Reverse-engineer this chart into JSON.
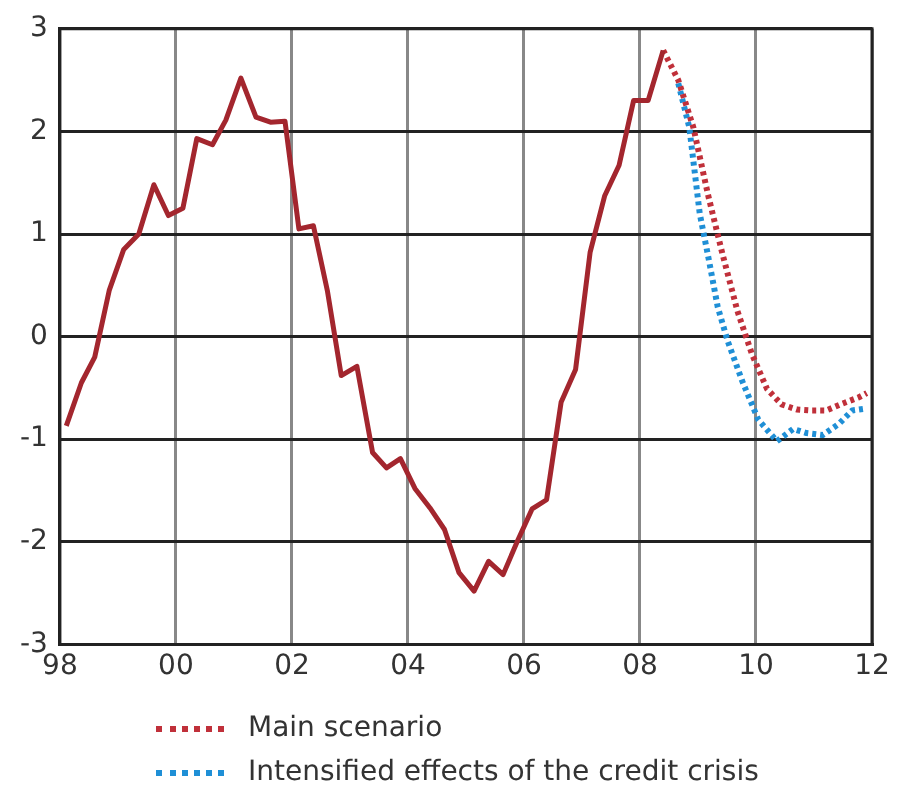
{
  "chart_data": {
    "type": "line",
    "xlim": [
      1998,
      2012
    ],
    "ylim": [
      -3,
      3
    ],
    "xticks": [
      {
        "value": 1998,
        "label": "98"
      },
      {
        "value": 2000,
        "label": "00"
      },
      {
        "value": 2002,
        "label": "02"
      },
      {
        "value": 2004,
        "label": "04"
      },
      {
        "value": 2006,
        "label": "06"
      },
      {
        "value": 2008,
        "label": "08"
      },
      {
        "value": 2010,
        "label": "10"
      },
      {
        "value": 2012,
        "label": "12"
      }
    ],
    "yticks": [
      -3,
      -2,
      -1,
      0,
      1,
      2,
      3
    ],
    "grid": true,
    "legend": "bottom",
    "marker": "none",
    "series": [
      {
        "color": "#a3262e",
        "line_style": "solid",
        "x": [
          1998.11,
          1998.37,
          1998.6,
          1998.85,
          1999.1,
          1999.36,
          1999.62,
          1999.87,
          2000.12,
          2000.36,
          2000.63,
          2000.86,
          2001.12,
          2001.38,
          2001.63,
          2001.88,
          2002.12,
          2002.37,
          2002.61,
          2002.85,
          2003.12,
          2003.39,
          2003.63,
          2003.87,
          2004.12,
          2004.38,
          2004.63,
          2004.88,
          2005.14,
          2005.39,
          2005.64,
          2005.89,
          2006.14,
          2006.39,
          2006.64,
          2006.89,
          2007.14,
          2007.39,
          2007.64,
          2007.89,
          2008.14,
          2008.4
        ],
        "values": [
          -0.87,
          -0.45,
          -0.2,
          0.45,
          0.85,
          1.0,
          1.48,
          1.18,
          1.25,
          1.93,
          1.87,
          2.11,
          2.52,
          2.14,
          2.09,
          2.1,
          1.05,
          1.08,
          0.45,
          -0.38,
          -0.29,
          -1.13,
          -1.28,
          -1.19,
          -1.48,
          -1.67,
          -1.88,
          -2.3,
          -2.48,
          -2.19,
          -2.32,
          -1.99,
          -1.68,
          -1.59,
          -0.64,
          -0.32,
          0.82,
          1.37,
          1.67,
          2.3,
          2.3,
          2.79
        ]
      },
      {
        "name": "Main scenario",
        "color": "#c0303a",
        "line_style": "dotted",
        "x": [
          2008.4,
          2008.66,
          2008.92,
          2009.17,
          2009.42,
          2009.68,
          2009.93,
          2010.19,
          2010.44,
          2010.7,
          2010.95,
          2011.21,
          2011.46,
          2011.78,
          2011.91
        ],
        "values": [
          2.79,
          2.5,
          2.04,
          1.39,
          0.81,
          0.25,
          -0.17,
          -0.51,
          -0.66,
          -0.71,
          -0.72,
          -0.72,
          -0.66,
          -0.59,
          -0.55
        ]
      },
      {
        "name": "Intensified effects of the credit crisis",
        "color": "#1f8fd6",
        "line_style": "dotted",
        "x": [
          2008.66,
          2008.85,
          2009.03,
          2009.19,
          2009.34,
          2009.51,
          2009.76,
          2010.04,
          2010.36,
          2010.64,
          2010.87,
          2011.15,
          2011.43,
          2011.66,
          2011.91
        ],
        "values": [
          2.47,
          2.04,
          1.2,
          0.74,
          0.29,
          -0.04,
          -0.43,
          -0.81,
          -1.02,
          -0.9,
          -0.94,
          -0.96,
          -0.85,
          -0.72,
          -0.7
        ]
      }
    ]
  }
}
